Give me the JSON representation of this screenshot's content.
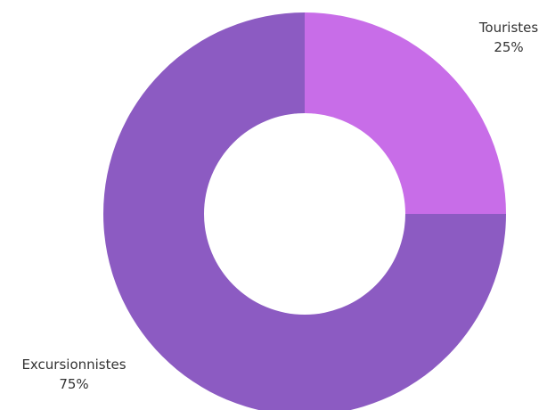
{
  "chart_data": {
    "type": "pie",
    "style": "donut",
    "title": "",
    "slices": [
      {
        "name": "Touristes",
        "value": 25,
        "label": "25%",
        "color": "#c86de8"
      },
      {
        "name": "Excursionnistes",
        "value": 75,
        "label": "75%",
        "color": "#8c5bc2"
      }
    ],
    "start_angle": "12 o'clock",
    "direction": "clockwise",
    "legend": "none",
    "data_labels": "outside"
  }
}
